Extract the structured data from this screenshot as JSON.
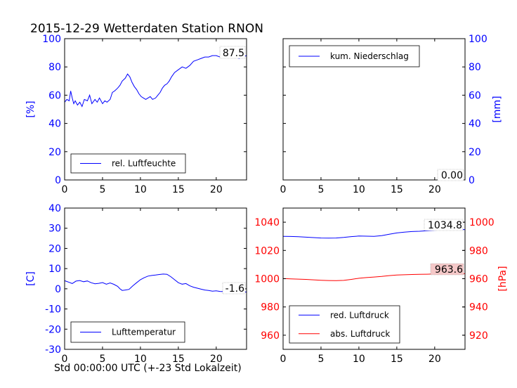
{
  "title": "2015-12-29 Wetterdaten Station RNON",
  "xlabel": "Std 00:00:00 UTC (+-23 Std Lokalzeit)",
  "colors": {
    "blue": "#0000ff",
    "red": "#ff0000",
    "black": "#000000"
  },
  "chart_data": [
    {
      "id": "humidity",
      "type": "line",
      "ylabel": "[%]",
      "ylabel_color": "#0000ff",
      "xlim": [
        0,
        24
      ],
      "ylim": [
        0,
        100
      ],
      "xticks": [
        0,
        5,
        10,
        15,
        20
      ],
      "yticks": [
        0,
        20,
        40,
        60,
        80,
        100
      ],
      "grid": false,
      "legend_position": "lower-left",
      "annotation": "87.5",
      "series": [
        {
          "name": "rel. Luftfeuchte",
          "color": "#0000ff",
          "x": [
            0,
            0.3,
            0.6,
            0.8,
            1,
            1.2,
            1.4,
            1.7,
            2,
            2.3,
            2.6,
            3,
            3.3,
            3.6,
            4,
            4.3,
            4.6,
            5,
            5.3,
            5.6,
            6,
            6.3,
            6.6,
            7,
            7.3,
            7.6,
            8,
            8.3,
            8.6,
            8.9,
            9.2,
            9.5,
            9.8,
            10.1,
            10.4,
            10.7,
            11,
            11.3,
            11.6,
            12,
            12.3,
            12.6,
            12.9,
            13.2,
            13.5,
            13.8,
            14.1,
            14.5,
            15,
            15.5,
            16,
            16.5,
            17,
            17.5,
            18,
            18.5,
            19,
            19.5,
            20,
            20.5,
            21,
            21.5,
            22,
            22.5,
            23,
            23.5,
            24
          ],
          "y": [
            55,
            57,
            56,
            63,
            58,
            54,
            56,
            53,
            55,
            52,
            57,
            56,
            60,
            54,
            57,
            55,
            58,
            54,
            56,
            55,
            57,
            62,
            63,
            65,
            67,
            70,
            72,
            75,
            73,
            69,
            66,
            64,
            61,
            59,
            58,
            57,
            58,
            59,
            57,
            58,
            60,
            62,
            65,
            67,
            68,
            70,
            73,
            76,
            78,
            80,
            79,
            81,
            84,
            85,
            86,
            87,
            87,
            88,
            88,
            87,
            89,
            89,
            88,
            87,
            86,
            87,
            88
          ]
        }
      ]
    },
    {
      "id": "precipitation",
      "type": "line",
      "ylabel": "[mm]",
      "ylabel_color": "#0000ff",
      "y_axis_side": "right",
      "xlim": [
        0,
        24
      ],
      "ylim": [
        0,
        100
      ],
      "xticks": [
        0,
        5,
        10,
        15,
        20
      ],
      "yticks": [
        0,
        20,
        40,
        60,
        80,
        100
      ],
      "grid": false,
      "legend_position": "upper-left",
      "annotation": "0.00",
      "series": [
        {
          "name": "kum. Niederschlag",
          "color": "#0000ff",
          "x": [
            0,
            24
          ],
          "y": [
            0,
            0
          ]
        }
      ]
    },
    {
      "id": "temperature",
      "type": "line",
      "ylabel": "[C]",
      "ylabel_color": "#0000ff",
      "xlim": [
        0,
        24
      ],
      "ylim": [
        -30,
        40
      ],
      "xticks": [
        0,
        5,
        10,
        15,
        20
      ],
      "yticks": [
        -30,
        -20,
        -10,
        0,
        10,
        20,
        30,
        40
      ],
      "grid": false,
      "legend_position": "lower-left",
      "annotation": "-1.6",
      "series": [
        {
          "name": "Lufttemperatur",
          "color": "#0000ff",
          "x": [
            0,
            0.3,
            0.6,
            1,
            1.5,
            2,
            2.5,
            3,
            3.5,
            4,
            4.5,
            5,
            5.5,
            6,
            6.5,
            7,
            7.3,
            7.6,
            8,
            8.5,
            9,
            9.5,
            10,
            10.5,
            11,
            11.5,
            12,
            12.5,
            13,
            13.5,
            14,
            14.5,
            15,
            15.5,
            16,
            16.5,
            17,
            17.5,
            18,
            18.5,
            19,
            19.5,
            20,
            20.5,
            21,
            21.5,
            22,
            22.5,
            23,
            23.5,
            24
          ],
          "y": [
            4,
            3.6,
            3.2,
            2.6,
            3.8,
            4.1,
            3.5,
            3.9,
            3,
            2.5,
            2.7,
            3.1,
            2.3,
            2.9,
            2.2,
            1.2,
            0,
            -0.8,
            -0.6,
            -0.3,
            1.5,
            3,
            4.5,
            5.5,
            6.3,
            6.6,
            6.8,
            7.1,
            7.3,
            7.2,
            6,
            4.5,
            3,
            2.3,
            2.6,
            1.5,
            0.8,
            0.3,
            -0.2,
            -0.6,
            -0.8,
            -1.2,
            -1,
            -1.3,
            -1.4,
            -1.5,
            -1.2,
            -1.5,
            -1.6,
            -1.4,
            -1.6
          ]
        }
      ]
    },
    {
      "id": "pressure",
      "type": "line",
      "ylabel": "[hPa]",
      "ylabel_color": "#ff0000",
      "xlim": [
        0,
        24
      ],
      "ylim": [
        950,
        1050
      ],
      "xticks": [
        0,
        5,
        10,
        15,
        20
      ],
      "yticks": [
        960,
        980,
        1000,
        1020,
        1040
      ],
      "y2lim": [
        910,
        1010
      ],
      "y2ticks": [
        920,
        940,
        960,
        980,
        1000
      ],
      "grid": false,
      "legend_position": "lower-left",
      "annotations": [
        "1034.8",
        "963.6"
      ],
      "series": [
        {
          "name": "red. Luftdruck",
          "color": "#0000ff",
          "axis": "left",
          "x": [
            0,
            1,
            2,
            3,
            4,
            5,
            6,
            7,
            8,
            9,
            10,
            11,
            12,
            13,
            14,
            15,
            16,
            17,
            18,
            19,
            20,
            21,
            22,
            23,
            24
          ],
          "y": [
            1030,
            1029.9,
            1029.7,
            1029.4,
            1029.1,
            1028.8,
            1028.7,
            1028.8,
            1029.2,
            1029.8,
            1030.2,
            1030.1,
            1030.0,
            1030.5,
            1031.5,
            1032.4,
            1033.0,
            1033.4,
            1033.6,
            1034.0,
            1034.3,
            1034.5,
            1034.6,
            1034.7,
            1034.8
          ]
        },
        {
          "name": "abs. Luftdruck",
          "color": "#ff0000",
          "axis": "right",
          "x": [
            0,
            1,
            2,
            3,
            4,
            5,
            6,
            7,
            8,
            9,
            10,
            11,
            12,
            13,
            14,
            15,
            16,
            17,
            18,
            19,
            20,
            21,
            22,
            23,
            24
          ],
          "y": [
            960.1,
            959.9,
            959.7,
            959.5,
            959.2,
            958.9,
            958.7,
            958.6,
            958.8,
            959.5,
            960.3,
            960.8,
            961.2,
            961.6,
            962.2,
            962.6,
            962.8,
            963.0,
            963.1,
            963.2,
            963.4,
            963.5,
            963.5,
            963.6,
            963.6
          ]
        }
      ]
    }
  ]
}
